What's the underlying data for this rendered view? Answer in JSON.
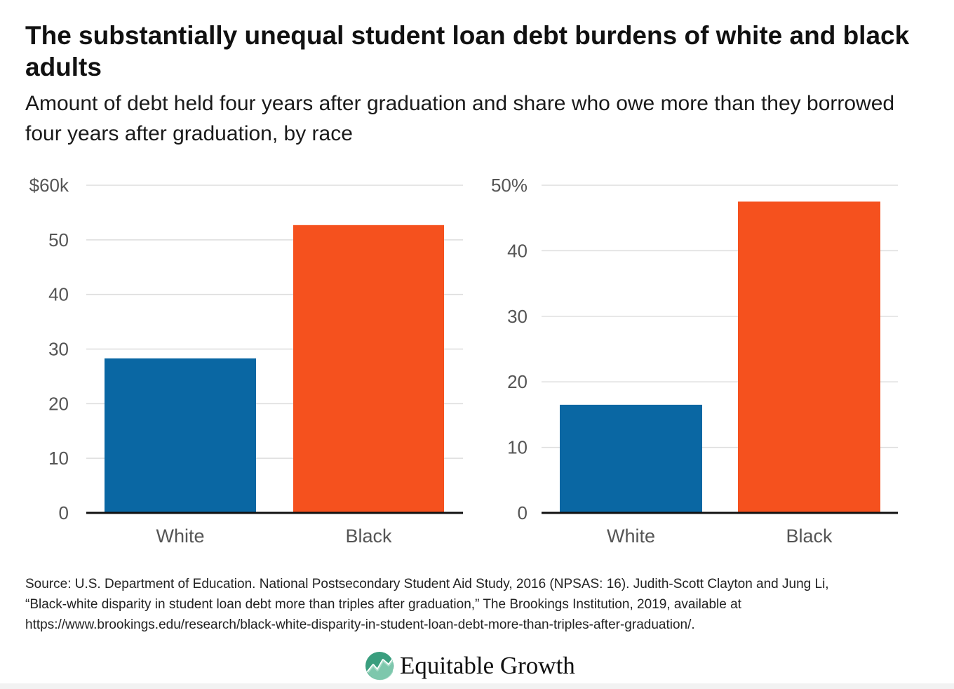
{
  "title": "The substantially unequal student loan debt burdens of white and black adults",
  "subtitle": "Amount of debt held four years after graduation and share who owe more than they borrowed four years after graduation, by race",
  "colors": {
    "white_bar": "#0a67a3",
    "black_bar": "#f5511e",
    "grid": "#dddddd",
    "axis": "#111111"
  },
  "chart_data": [
    {
      "type": "bar",
      "categories": [
        "White",
        "Black"
      ],
      "values": [
        28.3,
        52.7
      ],
      "ylim": [
        0,
        60
      ],
      "yticks": [
        0,
        10,
        20,
        30,
        40,
        50,
        60
      ],
      "ytick_labels": [
        "0",
        "10",
        "20",
        "30",
        "40",
        "50",
        "$60k"
      ],
      "grid": true
    },
    {
      "type": "bar",
      "categories": [
        "White",
        "Black"
      ],
      "values": [
        16.5,
        47.5
      ],
      "ylim": [
        0,
        50
      ],
      "yticks": [
        0,
        10,
        20,
        30,
        40,
        50
      ],
      "ytick_labels": [
        "0",
        "10",
        "20",
        "30",
        "40",
        "50%"
      ],
      "grid": true
    }
  ],
  "source": [
    "Source: U.S. Department of Education. National Postsecondary Student Aid Study, 2016 (NPSAS: 16). Judith-Scott Clayton and Jung Li,",
    "“Black-white disparity in student loan debt more than triples after graduation,” The Brookings Institution, 2019, available at",
    "https://www.brookings.edu/research/black-white-disparity-in-student-loan-debt-more-than-triples-after-graduation/."
  ],
  "logo": {
    "text": "Equitable Growth",
    "icon": "equitable-growth-logo-icon"
  }
}
